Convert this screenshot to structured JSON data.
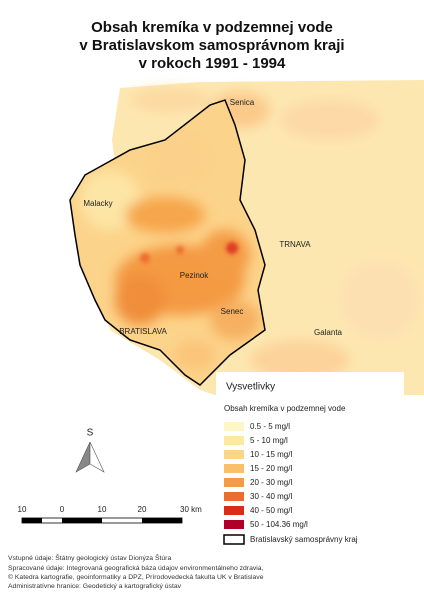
{
  "title": [
    "Obsah kremíka v podzemnej vode",
    "v Bratislavskom samosprávnom kraji",
    "v rokoch 1991 - 1994"
  ],
  "map": {
    "places": [
      "Senica",
      "Malacky",
      "TRNAVA",
      "Pezinok",
      "Senec",
      "BRATISLAVA",
      "Galanta"
    ]
  },
  "north_arrow": "S",
  "scale_bar": [
    "10",
    "0",
    "10",
    "20",
    "30 km"
  ],
  "legend": {
    "title": "Vysvetlivky",
    "subtitle": "Obsah kremíka v podzemnej vode",
    "items": [
      "0.5 - 5 mg/l",
      "5 - 10 mg/l",
      "10 - 15 mg/l",
      "15 - 20 mg/l",
      "20 - 30 mg/l",
      "30 - 40 mg/l",
      "40 - 50 mg/l",
      "50 - 104.36 mg/l"
    ],
    "boundary": "Bratislavský samosprávny kraj"
  },
  "footer": [
    "Vstupné údaje: Štátny geologický ústav Dionýza Štúra",
    "Spracované údaje: Integrovaná geografická báza údajov environmentálneho zdravia,",
    "© Katedra kartografie, geoinformatiky a DPZ, Prírodovedecká fakulta UK v Bratislave",
    "Administratívne hranice: Geodetický a kartografický ústav"
  ]
}
